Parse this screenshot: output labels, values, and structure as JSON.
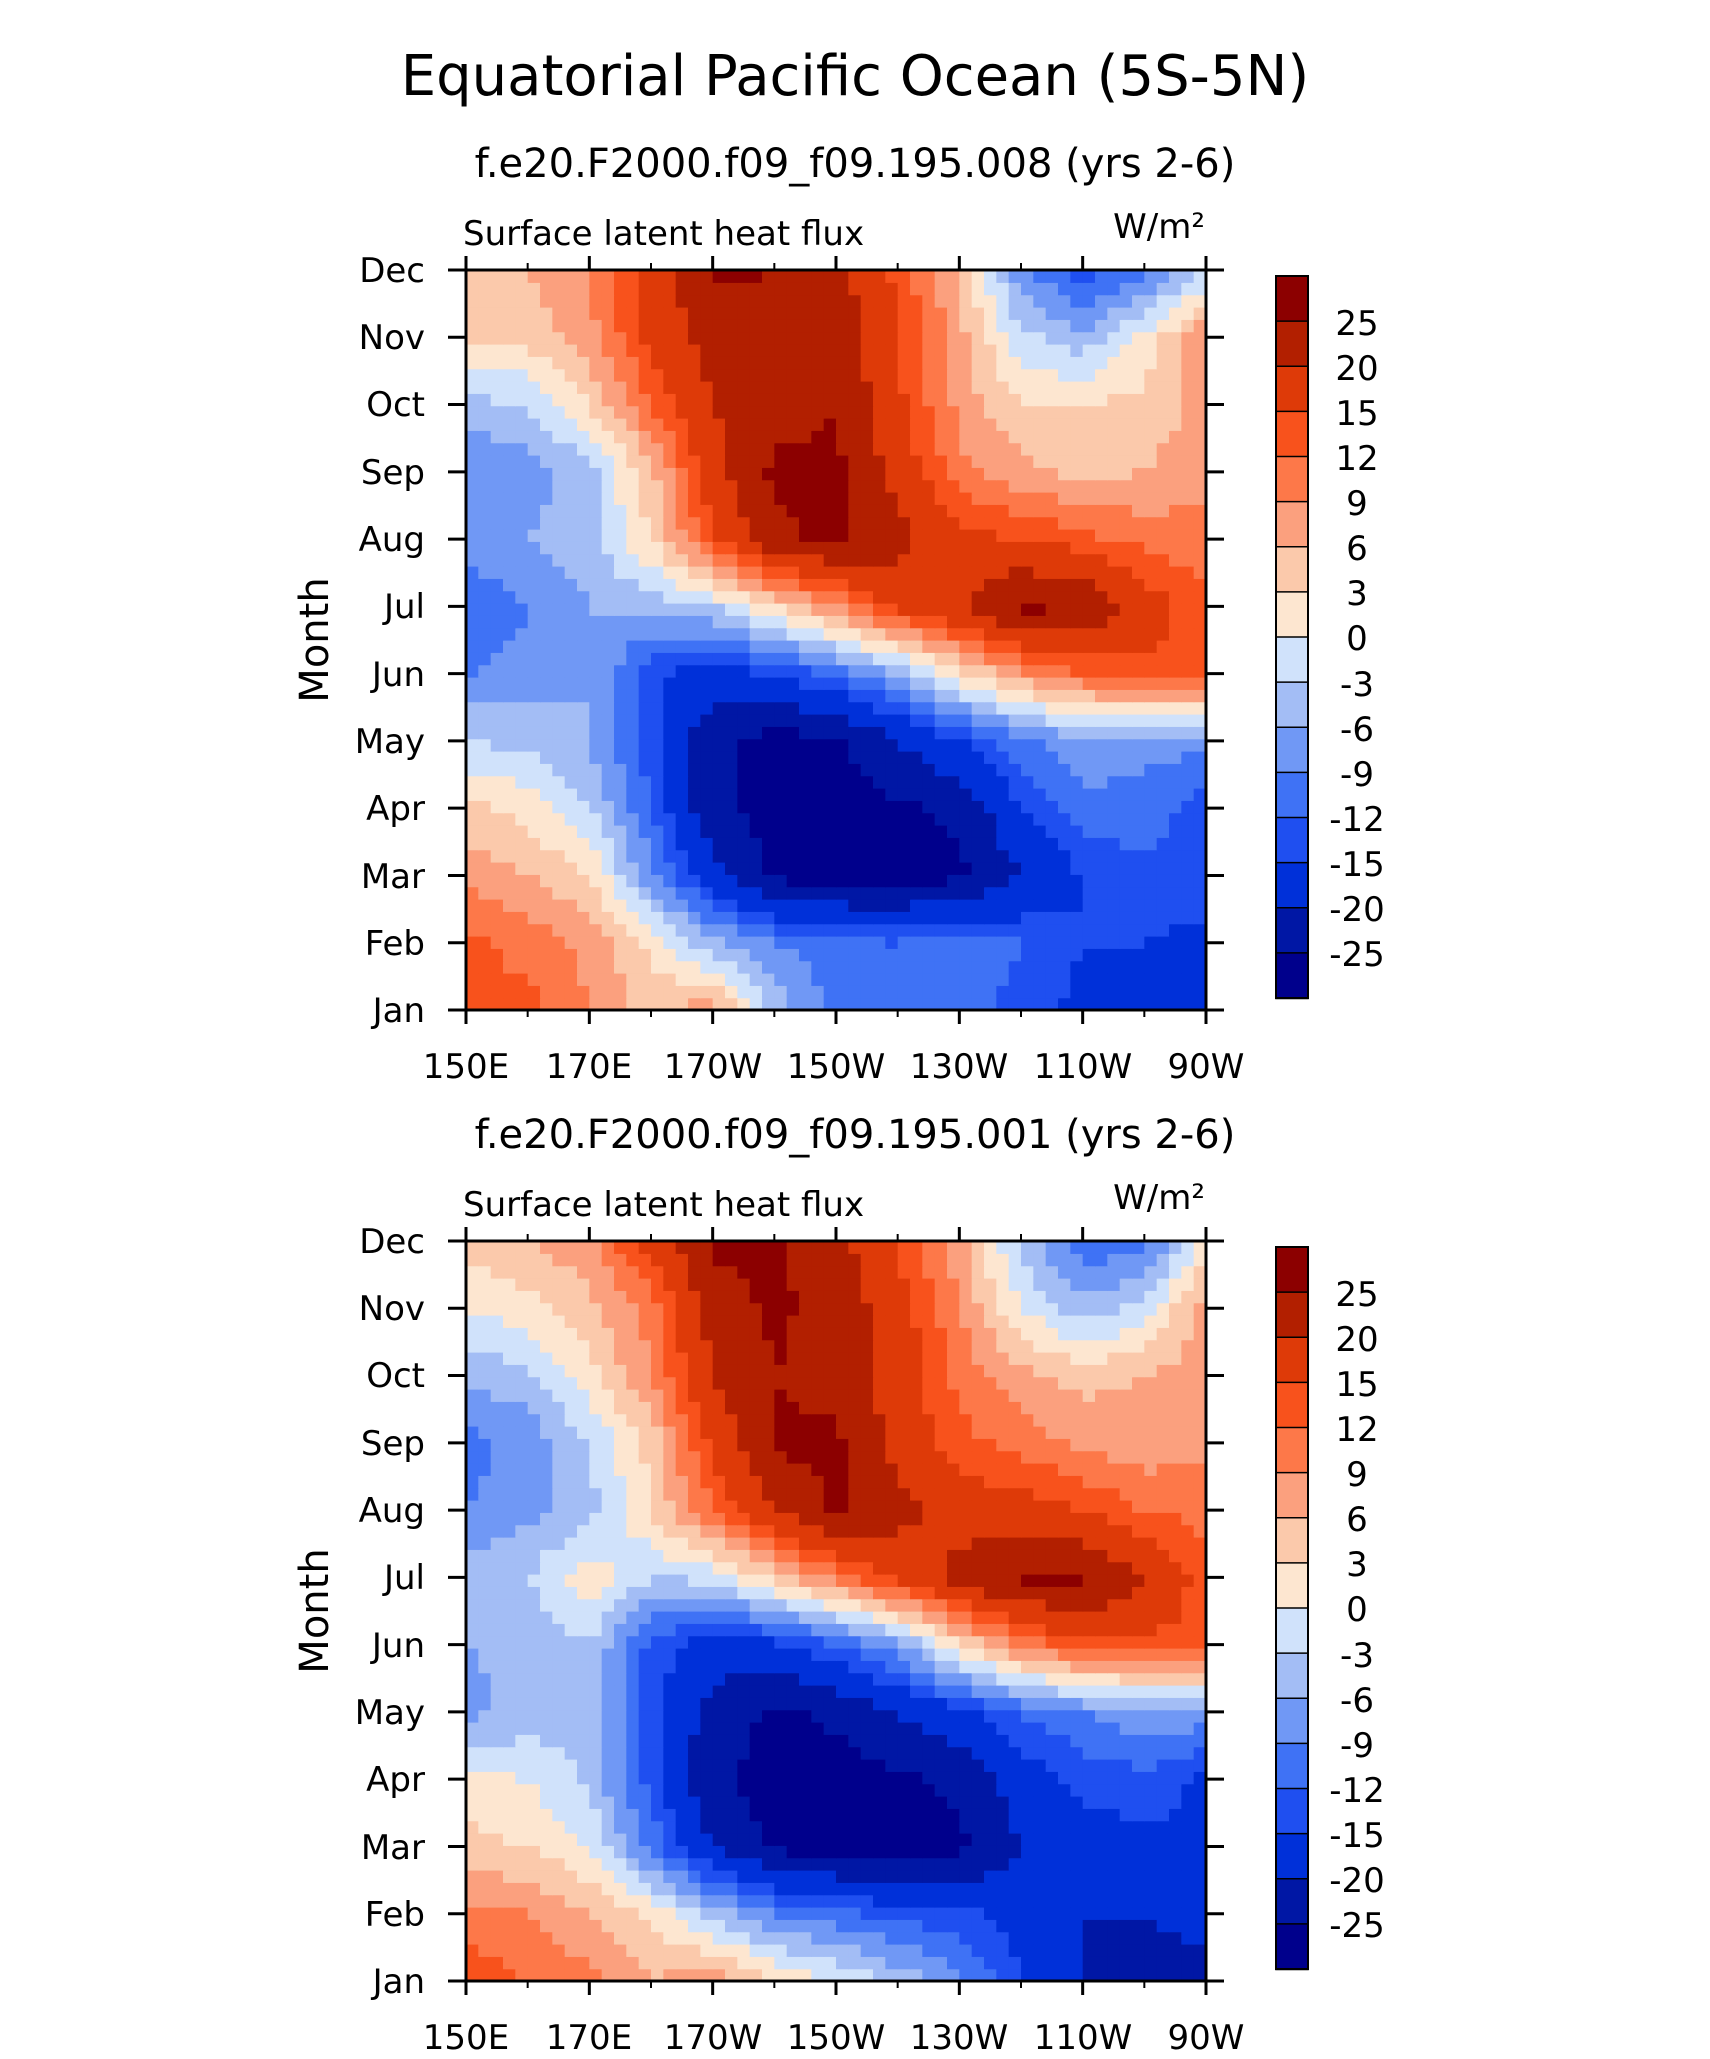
{
  "title": "Equatorial Pacific Ocean (5S-5N)",
  "colors": {
    "levels": [
      "#00008c",
      "#0017a5",
      "#0030d9",
      "#1f4ff0",
      "#3f72f5",
      "#7098f5",
      "#a3bdf5",
      "#d0e2fb",
      "#fde6d0",
      "#fbc9ab",
      "#fba07e",
      "#fd7849",
      "#f8521c",
      "#de3a08",
      "#b21f00",
      "#8c0000"
    ],
    "thresholds": [
      -25,
      -20,
      -15,
      -12,
      -9,
      -6,
      -3,
      0,
      3,
      6,
      9,
      12,
      15,
      20,
      25
    ]
  },
  "chart_data": [
    {
      "type": "heatmap",
      "title": "f.e20.F2000.f09_f09.195.008 (yrs 2-6)",
      "subtitle_left": "Surface latent heat flux",
      "units": "W/m²",
      "ylabel": "Month",
      "x_ticks": [
        "150E",
        "170E",
        "170W",
        "150W",
        "130W",
        "110W",
        "90W"
      ],
      "x_tick_values": [
        150,
        170,
        190,
        210,
        230,
        250,
        270
      ],
      "xlim": [
        150,
        270
      ],
      "y_ticks": [
        "Jan",
        "Feb",
        "Mar",
        "Apr",
        "May",
        "Jun",
        "Jul",
        "Aug",
        "Sep",
        "Oct",
        "Nov",
        "Dec"
      ],
      "colorbar_labels": [
        "25",
        "20",
        "15",
        "12",
        "9",
        "6",
        "3",
        "0",
        "-3",
        "-6",
        "-9",
        "-12",
        "-15",
        "-20",
        "-25"
      ],
      "x": [
        150,
        160,
        170,
        180,
        190,
        200,
        210,
        220,
        230,
        240,
        250,
        260,
        270
      ],
      "values": [
        [
          12,
          13,
          9,
          5,
          8,
          -4,
          -10,
          -12,
          -11,
          -13,
          -16,
          -18,
          -18
        ],
        [
          13,
          11,
          8,
          2,
          -5,
          -9,
          -11,
          -12,
          -10,
          -12,
          -15,
          -15,
          -16
        ],
        [
          8,
          6,
          3,
          -8,
          -18,
          -26,
          -27,
          -27,
          -26,
          -20,
          -15,
          -13,
          -13
        ],
        [
          4,
          2,
          -3,
          -12,
          -24,
          -27,
          -27,
          -26,
          -24,
          -15,
          -10,
          -10,
          -14
        ],
        [
          -3,
          -4,
          -6,
          -14,
          -24,
          -27,
          -26,
          -20,
          -15,
          -10,
          -7,
          -8,
          -8
        ],
        [
          -9,
          -8,
          -6,
          -14,
          -17,
          -15,
          -11,
          -6,
          2,
          8,
          12,
          14,
          14
        ],
        [
          -12,
          -9,
          -6,
          -5,
          -3,
          3,
          9,
          16,
          20,
          26,
          25,
          17,
          13
        ],
        [
          -7,
          -6,
          -4,
          3,
          14,
          24,
          26,
          22,
          16,
          15,
          13,
          11,
          10
        ],
        [
          -9,
          -8,
          -4,
          5,
          18,
          26,
          26,
          18,
          10,
          7,
          5,
          6,
          8
        ],
        [
          -4,
          -3,
          3,
          12,
          20,
          23,
          25,
          16,
          8,
          3,
          3,
          4,
          7
        ],
        [
          3,
          4,
          8,
          16,
          22,
          24,
          23,
          15,
          7,
          -2,
          -5,
          1,
          9
        ],
        [
          5,
          6,
          9,
          17,
          26,
          25,
          22,
          14,
          6,
          -8,
          -14,
          -10,
          -3
        ]
      ]
    },
    {
      "type": "heatmap",
      "title": "f.e20.F2000.f09_f09.195.001 (yrs 2-6)",
      "subtitle_left": "Surface latent heat flux",
      "units": "W/m²",
      "ylabel": "Month",
      "x_ticks": [
        "150E",
        "170E",
        "170W",
        "150W",
        "130W",
        "110W",
        "90W"
      ],
      "x_tick_values": [
        150,
        170,
        190,
        210,
        230,
        250,
        270
      ],
      "xlim": [
        150,
        270
      ],
      "y_ticks": [
        "Jan",
        "Feb",
        "Mar",
        "Apr",
        "May",
        "Jun",
        "Jul",
        "Aug",
        "Sep",
        "Oct",
        "Nov",
        "Dec"
      ],
      "colorbar_labels": [
        "25",
        "20",
        "15",
        "12",
        "9",
        "6",
        "3",
        "0",
        "-3",
        "-6",
        "-9",
        "-12",
        "-15",
        "-20",
        "-25"
      ],
      "x": [
        150,
        160,
        170,
        180,
        190,
        200,
        210,
        220,
        230,
        240,
        250,
        260,
        270
      ],
      "values": [
        [
          14,
          12,
          10,
          6,
          8,
          3,
          0,
          -4,
          -8,
          -15,
          -20,
          -22,
          -22
        ],
        [
          10,
          9,
          6,
          2,
          -4,
          -9,
          -11,
          -13,
          -14,
          -17,
          -20,
          -20,
          -18
        ],
        [
          4,
          3,
          0,
          -10,
          -20,
          -26,
          -27,
          -27,
          -26,
          -20,
          -17,
          -16,
          -15
        ],
        [
          1,
          0,
          -4,
          -13,
          -24,
          -27,
          -27,
          -26,
          -24,
          -17,
          -14,
          -13,
          -16
        ],
        [
          -7,
          -5,
          -3,
          -14,
          -22,
          -26,
          -24,
          -20,
          -16,
          -12,
          -9,
          -7,
          -7
        ],
        [
          -6,
          -5,
          -3,
          -13,
          -17,
          -16,
          -12,
          -7,
          3,
          10,
          14,
          14,
          14
        ],
        [
          -4,
          -3,
          2,
          -3,
          -2,
          4,
          10,
          16,
          22,
          26,
          26,
          20,
          13
        ],
        [
          -9,
          -7,
          -4,
          3,
          12,
          20,
          26,
          22,
          17,
          17,
          15,
          12,
          11
        ],
        [
          -10,
          -8,
          -3,
          4,
          16,
          26,
          26,
          18,
          13,
          11,
          8,
          7,
          8
        ],
        [
          -5,
          -4,
          2,
          9,
          20,
          25,
          23,
          18,
          11,
          7,
          5,
          6,
          8
        ],
        [
          0,
          2,
          5,
          10,
          22,
          26,
          23,
          17,
          9,
          0,
          -5,
          -2,
          8
        ],
        [
          4,
          6,
          8,
          17,
          26,
          26,
          22,
          14,
          7,
          -4,
          -11,
          -11,
          1
        ]
      ]
    }
  ]
}
